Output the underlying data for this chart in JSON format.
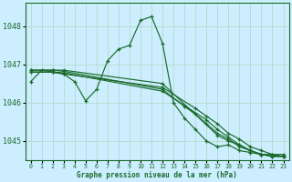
{
  "background_color": "#cceeff",
  "plot_bg_color": "#cceeff",
  "grid_color": "#b8ddd0",
  "line_color": "#1a6b2a",
  "xlabel": "Graphe pression niveau de la mer (hPa)",
  "ylim": [
    1044.5,
    1048.6
  ],
  "xlim": [
    -0.5,
    23.5
  ],
  "yticks": [
    1045,
    1046,
    1047,
    1048
  ],
  "xticks": [
    0,
    1,
    2,
    3,
    4,
    5,
    6,
    7,
    8,
    9,
    10,
    11,
    12,
    13,
    14,
    15,
    16,
    17,
    18,
    19,
    20,
    21,
    22,
    23
  ],
  "series": [
    {
      "x": [
        0,
        1,
        2,
        3,
        4,
        5,
        6,
        7,
        8,
        9,
        10,
        11,
        12,
        13,
        14,
        15,
        16,
        17,
        18,
        19,
        20,
        21,
        22,
        23
      ],
      "y": [
        1046.55,
        1046.85,
        1046.8,
        1046.75,
        1046.55,
        1046.05,
        1046.35,
        1047.1,
        1047.4,
        1047.5,
        1048.15,
        1048.25,
        1047.55,
        1046.0,
        1045.6,
        1045.3,
        1045.0,
        1044.85,
        1044.9,
        1044.75,
        1044.7,
        1044.65,
        1044.65,
        1044.65
      ]
    },
    {
      "x": [
        0,
        2,
        3,
        12,
        15,
        16,
        17,
        18,
        19,
        20,
        21,
        22,
        23
      ],
      "y": [
        1046.8,
        1046.8,
        1046.75,
        1046.4,
        1045.85,
        1045.65,
        1045.45,
        1045.2,
        1045.05,
        1044.85,
        1044.75,
        1044.65,
        1044.6
      ]
    },
    {
      "x": [
        0,
        2,
        3,
        12,
        14,
        15,
        16,
        17,
        18,
        19,
        20,
        21,
        22,
        23
      ],
      "y": [
        1046.85,
        1046.85,
        1046.82,
        1046.35,
        1045.9,
        1045.7,
        1045.45,
        1045.2,
        1045.05,
        1044.85,
        1044.75,
        1044.65,
        1044.6,
        1044.6
      ]
    },
    {
      "x": [
        0,
        2,
        3,
        12,
        16,
        17,
        18,
        19,
        20,
        21,
        22,
        23
      ],
      "y": [
        1046.8,
        1046.8,
        1046.78,
        1046.3,
        1045.55,
        1045.3,
        1045.1,
        1044.9,
        1044.75,
        1044.65,
        1044.6,
        1044.6
      ]
    },
    {
      "x": [
        0,
        2,
        3,
        12,
        17,
        18,
        19,
        20,
        21,
        22,
        23
      ],
      "y": [
        1046.85,
        1046.85,
        1046.85,
        1046.5,
        1045.15,
        1045.0,
        1044.9,
        1044.75,
        1044.65,
        1044.6,
        1044.6
      ]
    }
  ]
}
